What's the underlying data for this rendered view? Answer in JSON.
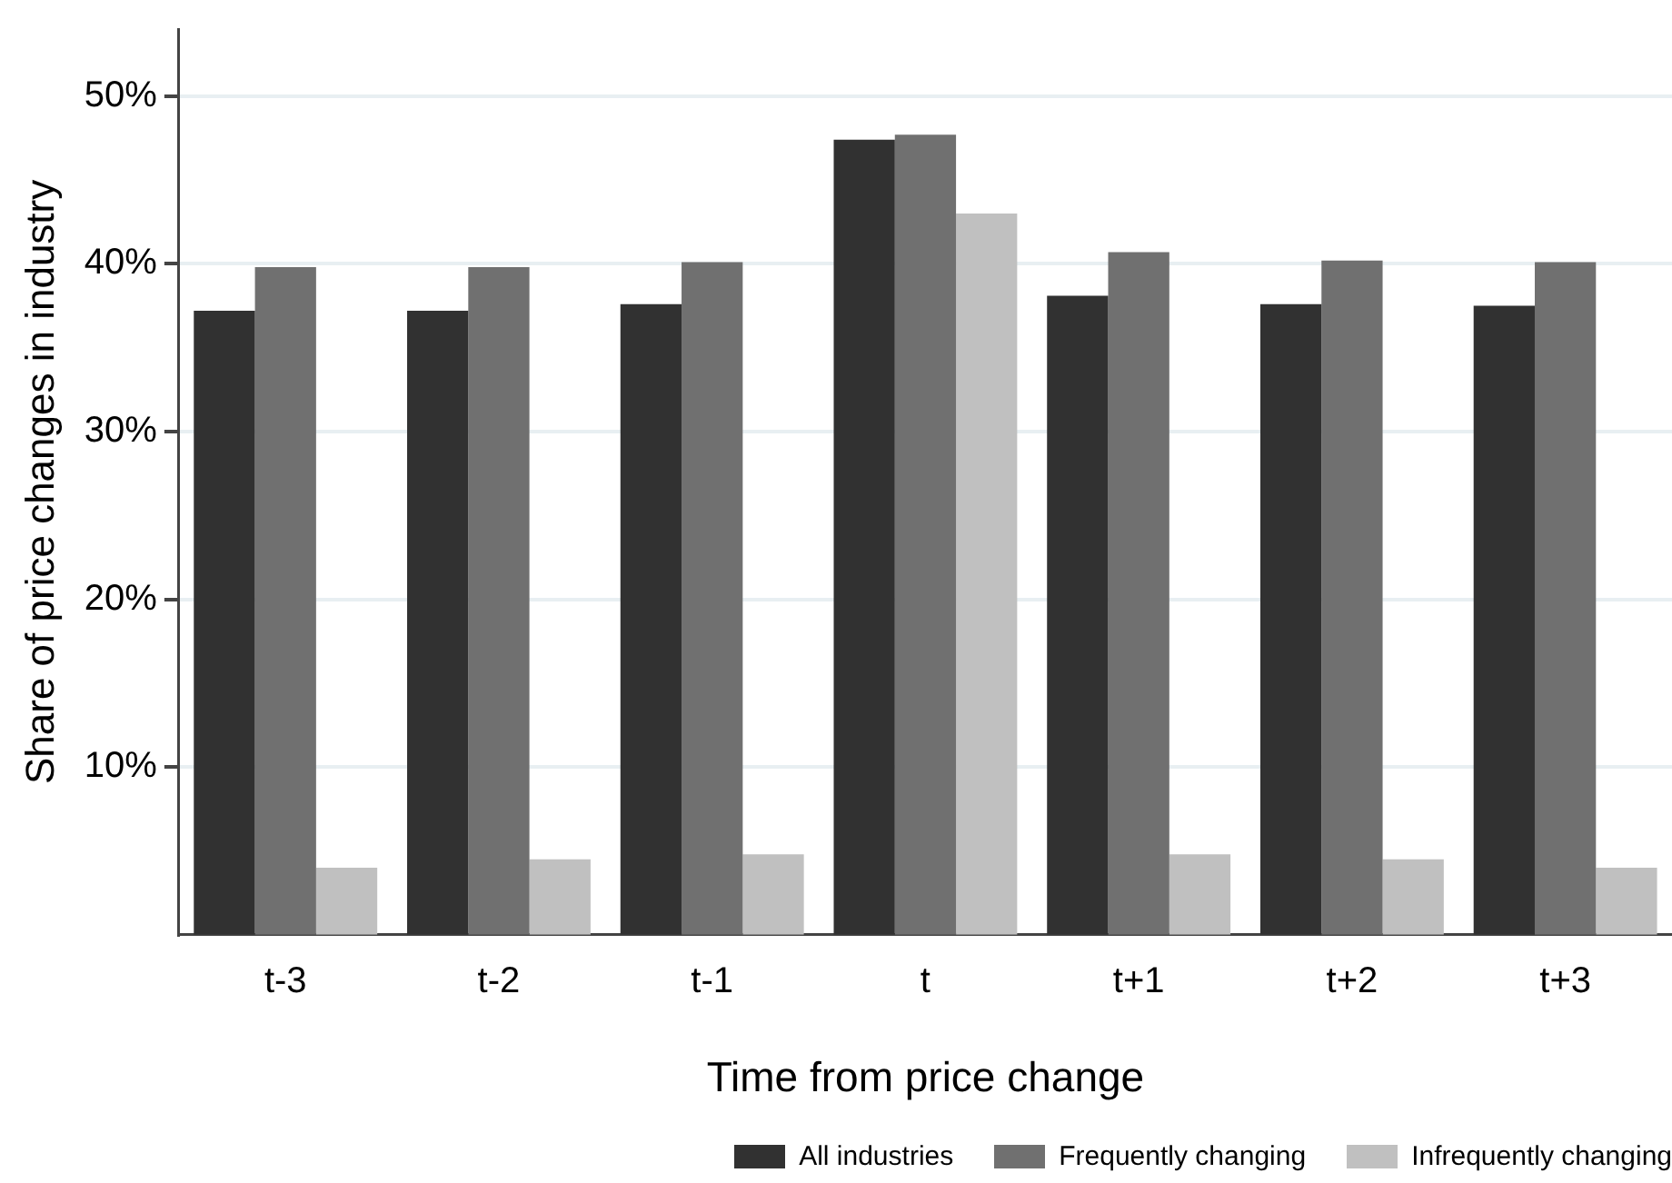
{
  "chart_data": {
    "type": "bar",
    "xlabel": "Time from price change",
    "ylabel": "Share of price changes in industry",
    "categories": [
      "t-3",
      "t-2",
      "t-1",
      "t",
      "t+1",
      "t+2",
      "t+3"
    ],
    "series": [
      {
        "name": "All industries",
        "color": "#313131",
        "values": [
          37.2,
          37.2,
          37.6,
          47.4,
          38.1,
          37.6,
          37.5
        ]
      },
      {
        "name": "Frequently changing",
        "color": "#707070",
        "values": [
          39.8,
          39.8,
          40.1,
          47.7,
          40.7,
          40.2,
          40.1
        ]
      },
      {
        "name": "Infrequently changing",
        "color": "#c0c0c0",
        "values": [
          4.0,
          4.5,
          4.8,
          43.0,
          4.8,
          4.5,
          4.0
        ]
      }
    ],
    "ylim": [
      0,
      54
    ],
    "yticks": [
      {
        "value": 10,
        "label": "10%"
      },
      {
        "value": 20,
        "label": "20%"
      },
      {
        "value": 30,
        "label": "30%"
      },
      {
        "value": 40,
        "label": "40%"
      },
      {
        "value": 50,
        "label": "50%"
      }
    ],
    "grid": "y",
    "legend": "bottom"
  }
}
